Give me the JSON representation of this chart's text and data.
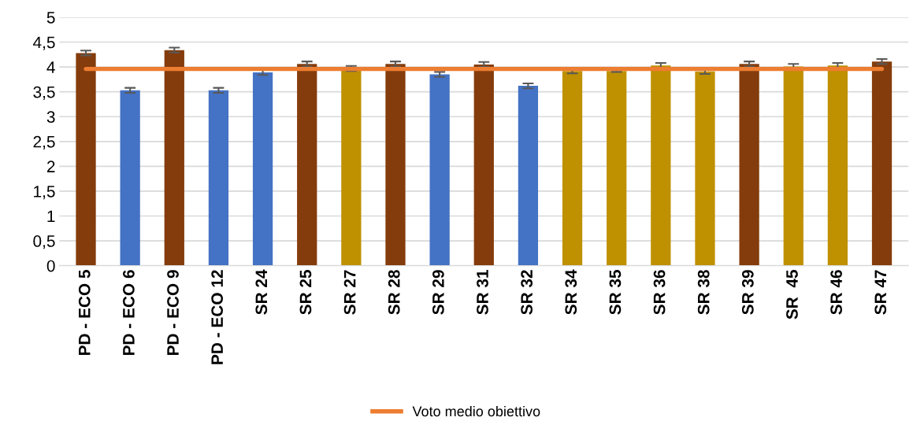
{
  "chart_data": {
    "type": "bar",
    "categories": [
      "PD - ECO 5",
      "PD - ECO 6",
      "PD - ECO 9",
      "PD - ECO 12",
      "SR 24",
      "SR 25",
      "SR 27",
      "SR 28",
      "SR 29",
      "SR 31",
      "SR 32",
      "SR 34",
      "SR 35",
      "SR 36",
      "SR 38",
      "SR 39",
      "SR  45",
      "SR 46",
      "SR 47"
    ],
    "series": [
      {
        "type": "bar",
        "colors": [
          "#843c0c",
          "#4472c4",
          "#843c0c",
          "#4472c4",
          "#4472c4",
          "#843c0c",
          "#bf9000",
          "#843c0c",
          "#4472c4",
          "#843c0c",
          "#4472c4",
          "#bf9000",
          "#bf9000",
          "#bf9000",
          "#bf9000",
          "#843c0c",
          "#bf9000",
          "#bf9000",
          "#843c0c"
        ],
        "values": [
          4.28,
          3.53,
          4.34,
          3.53,
          3.89,
          4.06,
          3.97,
          4.06,
          3.85,
          4.05,
          3.62,
          3.92,
          3.92,
          4.03,
          3.91,
          4.06,
          4.01,
          4.03,
          4.11
        ],
        "errors": [
          0.05,
          0.05,
          0.05,
          0.05,
          0.05,
          0.05,
          0.05,
          0.05,
          0.05,
          0.05,
          0.05,
          0.05,
          0.02,
          0.05,
          0.05,
          0.05,
          0.05,
          0.05,
          0.05
        ]
      },
      {
        "type": "line",
        "name": "Voto medio obiettivo",
        "color": "#ed7d31",
        "values": [
          3.96,
          3.96,
          3.96,
          3.96,
          3.96,
          3.96,
          3.96,
          3.96,
          3.96,
          3.96,
          3.96,
          3.96,
          3.96,
          3.96,
          3.96,
          3.96,
          3.96,
          3.96,
          3.96
        ]
      }
    ],
    "ylim": [
      0,
      5
    ],
    "yticks": [
      0,
      {
        "value": 0.5,
        "label": "0,5"
      },
      1,
      {
        "value": 1.5,
        "label": "1,5"
      },
      2,
      {
        "value": 2.5,
        "label": "2,5"
      },
      3,
      {
        "value": 3.5,
        "label": "3,5"
      },
      4,
      {
        "value": 4.5,
        "label": "4,5"
      },
      5
    ],
    "grid": "y",
    "legend": "bottom",
    "marker": "none",
    "line_style": "solid"
  }
}
